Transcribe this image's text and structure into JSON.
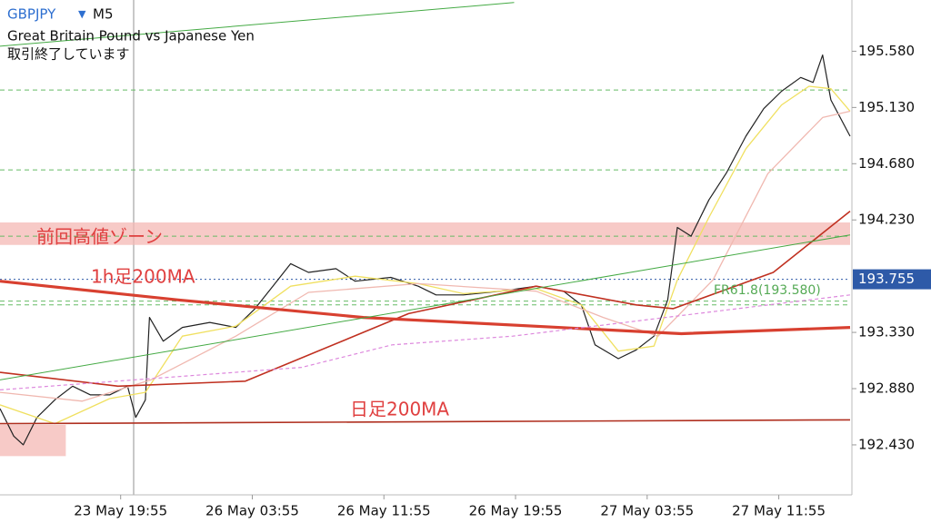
{
  "header": {
    "symbol": "GBPJPY",
    "timeframe": "M5",
    "description": "Great Britain Pound vs Japanese Yen",
    "status": "取引終了しています"
  },
  "chart_data": {
    "type": "line",
    "xlim": [
      0,
      620
    ],
    "ylim": [
      192.03,
      195.99
    ],
    "xticks": [
      {
        "value": 88,
        "label": "23 May 19:55"
      },
      {
        "value": 184,
        "label": "26 May 03:55"
      },
      {
        "value": 280,
        "label": "26 May 11:55"
      },
      {
        "value": 376,
        "label": "26 May 19:55"
      },
      {
        "value": 472,
        "label": "27 May 03:55"
      },
      {
        "value": 568,
        "label": "27 May 11:55"
      }
    ],
    "yticks": [
      {
        "value": 195.58,
        "label": "195.580"
      },
      {
        "value": 195.13,
        "label": "195.130"
      },
      {
        "value": 194.68,
        "label": "194.680"
      },
      {
        "value": 194.23,
        "label": "194.230"
      },
      {
        "value": 193.33,
        "label": "193.330"
      },
      {
        "value": 192.88,
        "label": "192.880"
      },
      {
        "value": 192.43,
        "label": "192.430"
      }
    ],
    "series": [
      {
        "color": "#222222",
        "x": [
          0,
          10,
          17,
          27,
          40,
          53,
          66,
          80,
          93,
          99,
          106,
          109,
          119,
          133,
          153,
          172,
          186,
          199,
          212,
          225,
          245,
          259,
          285,
          305,
          318,
          338,
          365,
          391,
          411,
          424,
          434,
          451,
          464,
          477,
          487,
          494,
          504,
          517,
          530,
          544,
          557,
          570,
          584,
          593,
          600,
          606,
          620
        ],
        "values": [
          192.72,
          192.5,
          192.43,
          192.65,
          192.79,
          192.9,
          192.83,
          192.83,
          192.9,
          192.65,
          192.79,
          193.45,
          193.26,
          193.37,
          193.41,
          193.37,
          193.52,
          193.7,
          193.88,
          193.81,
          193.84,
          193.74,
          193.77,
          193.7,
          193.63,
          193.63,
          193.66,
          193.7,
          193.66,
          193.55,
          193.23,
          193.12,
          193.19,
          193.3,
          193.59,
          194.17,
          194.1,
          194.39,
          194.61,
          194.9,
          195.12,
          195.26,
          195.37,
          195.33,
          195.55,
          195.19,
          194.9
        ]
      },
      {
        "color": "#f0e060",
        "x": [
          0,
          40,
          80,
          106,
          133,
          172,
          212,
          259,
          305,
          338,
          391,
          424,
          451,
          477,
          494,
          517,
          544,
          570,
          590,
          606,
          620
        ],
        "values": [
          192.75,
          192.6,
          192.8,
          192.85,
          193.3,
          193.38,
          193.7,
          193.78,
          193.72,
          193.64,
          193.68,
          193.55,
          193.18,
          193.22,
          193.75,
          194.25,
          194.8,
          195.15,
          195.3,
          195.28,
          195.1
        ]
      },
      {
        "color": "#f0b8b0",
        "x": [
          0,
          60,
          110,
          172,
          225,
          305,
          391,
          440,
          480,
          520,
          560,
          600,
          620
        ],
        "values": [
          192.85,
          192.78,
          192.95,
          193.3,
          193.65,
          193.72,
          193.66,
          193.45,
          193.3,
          193.75,
          194.6,
          195.05,
          195.1
        ]
      },
      {
        "color": "#c03020",
        "x": [
          0,
          86,
          179,
          298,
          391,
          464,
          491,
          564,
          620
        ],
        "values": [
          193.01,
          192.9,
          192.94,
          193.48,
          193.7,
          193.55,
          193.52,
          193.81,
          194.3
        ]
      },
      {
        "color": "#d84030",
        "x": [
          0,
          130,
          265,
          497,
          620
        ],
        "values": [
          193.74,
          193.59,
          193.45,
          193.32,
          193.37
        ]
      },
      {
        "color": "#b03020",
        "x": [
          0,
          620
        ],
        "values": [
          192.6,
          192.63
        ]
      },
      {
        "color": "#dd88dd",
        "x": [
          0,
          220,
          286,
          374,
          620
        ],
        "values": [
          192.87,
          193.05,
          193.23,
          193.3,
          193.63
        ]
      },
      {
        "color": "#44aa44",
        "x": [
          0,
          620
        ],
        "values": [
          192.95,
          194.11
        ]
      },
      {
        "color": "#44aa44",
        "x": [
          0,
          375
        ],
        "values": [
          195.62,
          195.97
        ]
      }
    ],
    "hlines": [
      {
        "value": 195.27,
        "color": "#66bb66"
      },
      {
        "value": 194.63,
        "color": "#66bb66"
      },
      {
        "value": 194.1,
        "color": "#66bb66"
      },
      {
        "value": 193.58,
        "color": "#66bb66"
      },
      {
        "value": 193.55,
        "color": "#66bb66"
      }
    ],
    "zones": [
      {
        "range": [
          194.03,
          194.21
        ],
        "color": "#f4b8b4"
      },
      {
        "range": [
          192.34,
          192.59
        ],
        "xrange": [
          0,
          48
        ],
        "color": "#f4b8b4"
      }
    ],
    "annotations": [
      {
        "text": "前回高値ゾーン",
        "color": "#e04040"
      },
      {
        "text": "1h足200MA",
        "color": "#e04040"
      },
      {
        "text": "日足200MA",
        "color": "#e04040"
      },
      {
        "text": "FR61.8(193.580)",
        "color": "#55aa55"
      }
    ],
    "current_price": {
      "value": 193.755,
      "color": "#2e5aa8"
    }
  }
}
